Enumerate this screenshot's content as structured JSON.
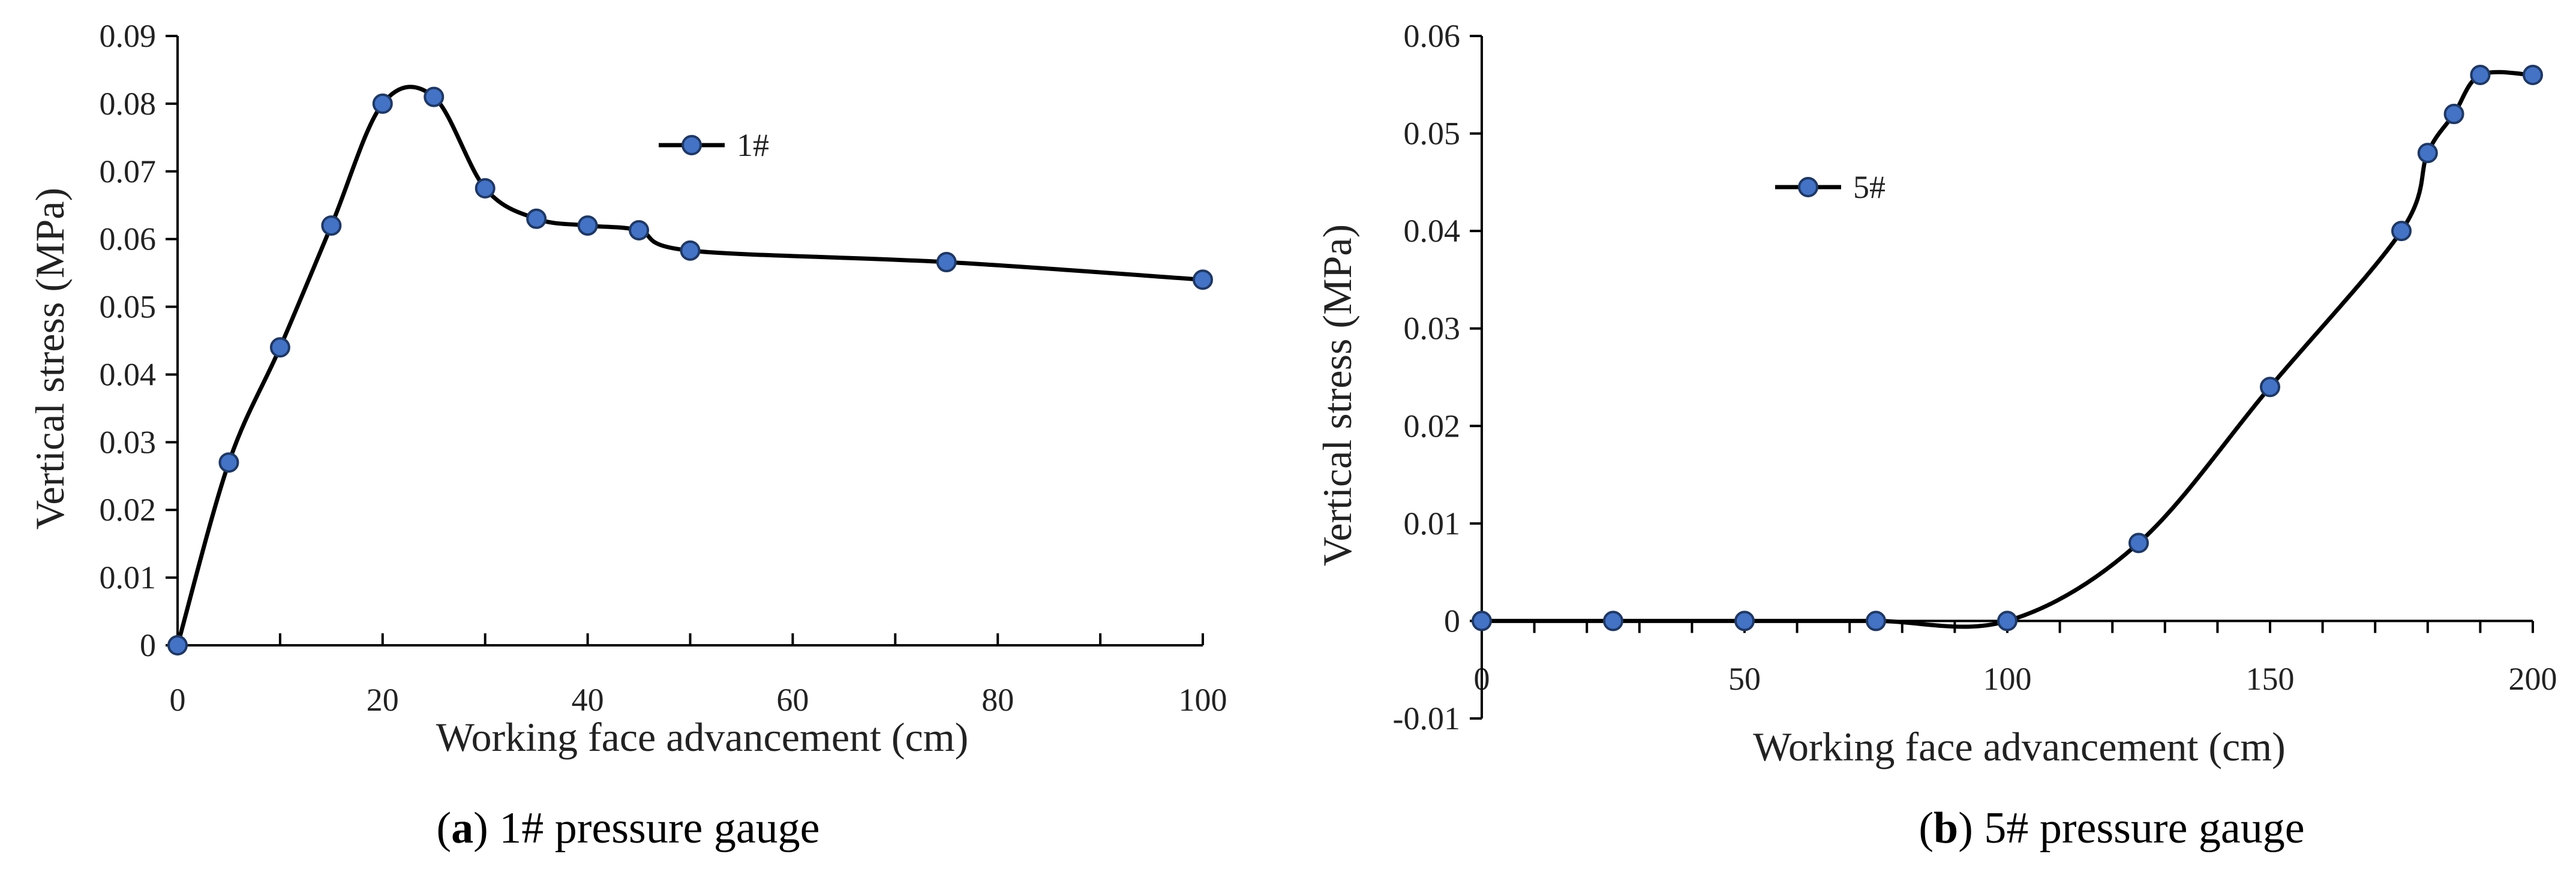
{
  "charts": [
    {
      "type": "line",
      "caption_letter": "a",
      "caption_text": " 1# pressure gauge",
      "xlabel": "Working face advancement (cm)",
      "ylabel": "Vertical stress (MPa)",
      "xlim": [
        0,
        100
      ],
      "ylim": [
        0,
        0.09
      ],
      "xticks": [
        0,
        20,
        40,
        60,
        80,
        100
      ],
      "xminor": [
        10,
        30,
        50,
        70,
        90
      ],
      "yticks": [
        0,
        0.01,
        0.02,
        0.03,
        0.04,
        0.05,
        0.06,
        0.07,
        0.08,
        0.09
      ],
      "legend": "1#",
      "marker_color": "#4472c4",
      "series": {
        "name": "1#",
        "x": [
          0,
          5,
          10,
          15,
          20,
          25,
          30,
          35,
          40,
          45,
          50,
          75,
          100
        ],
        "y": [
          0,
          0.027,
          0.044,
          0.062,
          0.08,
          0.081,
          0.0675,
          0.063,
          0.062,
          0.0613,
          0.0583,
          0.0566,
          0.054
        ]
      }
    },
    {
      "type": "line",
      "caption_letter": "b",
      "caption_text": " 5# pressure gauge",
      "xlabel": "Working face advancement (cm)",
      "ylabel": "Vertical stress (MPa)",
      "xlim": [
        0,
        200
      ],
      "ylim": [
        -0.01,
        0.06
      ],
      "xticks": [
        0,
        50,
        100,
        150,
        200
      ],
      "xminor": [
        10,
        20,
        30,
        40,
        60,
        70,
        80,
        90,
        110,
        120,
        130,
        140,
        160,
        170,
        180,
        190
      ],
      "yticks": [
        -0.01,
        0,
        0.01,
        0.02,
        0.03,
        0.04,
        0.05,
        0.06
      ],
      "legend": "5#",
      "marker_color": "#4472c4",
      "series": {
        "name": "5#",
        "x": [
          0,
          25,
          50,
          75,
          100,
          125,
          150,
          175,
          180,
          185,
          190,
          200
        ],
        "y": [
          0,
          0,
          0,
          0,
          0,
          0.008,
          0.024,
          0.04,
          0.048,
          0.052,
          0.056,
          0.056
        ]
      }
    }
  ],
  "chart_data": [
    {
      "type": "line",
      "title": "(a) 1# pressure gauge",
      "xlabel": "Working face advancement (cm)",
      "ylabel": "Vertical stress (MPa)",
      "xlim": [
        0,
        100
      ],
      "ylim": [
        0,
        0.09
      ],
      "series": [
        {
          "name": "1#",
          "x": [
            0,
            5,
            10,
            15,
            20,
            25,
            30,
            35,
            40,
            45,
            50,
            75,
            100
          ],
          "y": [
            0,
            0.027,
            0.044,
            0.062,
            0.08,
            0.081,
            0.0675,
            0.063,
            0.062,
            0.0613,
            0.0583,
            0.0566,
            0.054
          ]
        }
      ]
    },
    {
      "type": "line",
      "title": "(b) 5# pressure gauge",
      "xlabel": "Working face advancement (cm)",
      "ylabel": "Vertical stress (MPa)",
      "xlim": [
        0,
        200
      ],
      "ylim": [
        -0.01,
        0.06
      ],
      "series": [
        {
          "name": "5#",
          "x": [
            0,
            25,
            50,
            75,
            100,
            125,
            150,
            175,
            180,
            185,
            190,
            200
          ],
          "y": [
            0,
            0,
            0,
            0,
            0,
            0.008,
            0.024,
            0.04,
            0.048,
            0.052,
            0.056,
            0.056
          ]
        }
      ]
    }
  ]
}
